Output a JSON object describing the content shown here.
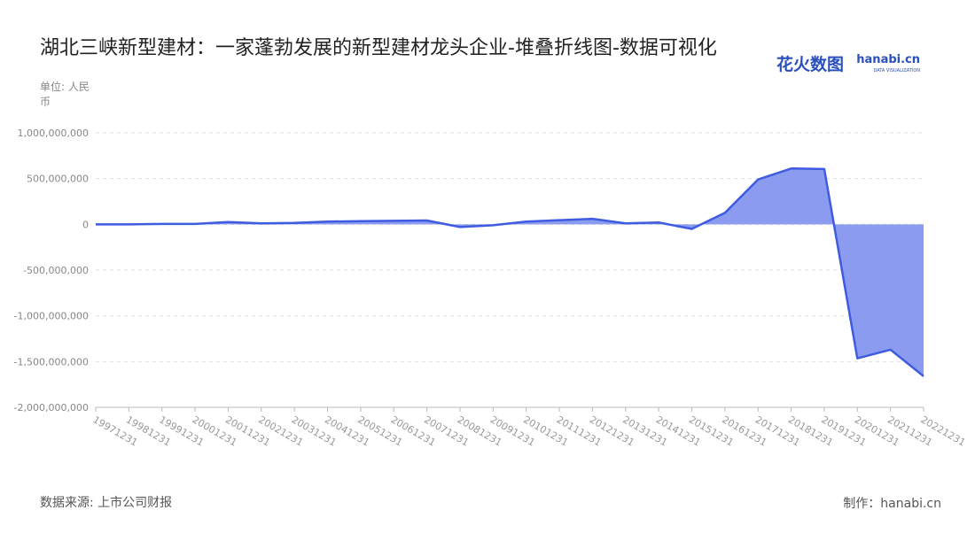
{
  "chart_data": {
    "type": "area",
    "title": "湖北三峡新型建材：一家蓬勃发展的新型建材龙头企业-堆叠折线图-数据可视化",
    "unit": "单位: 人民币",
    "source": "数据来源: 上市公司财报",
    "credit": "制作：hanabi.cn",
    "brand": "花火数图",
    "brand_site": "hanabi.cn",
    "brand_tagline": "DATA VISUALIZATION",
    "categories": [
      "19971231",
      "19981231",
      "19991231",
      "20001231",
      "20011231",
      "20021231",
      "20031231",
      "20041231",
      "20051231",
      "20061231",
      "20071231",
      "20081231",
      "20091231",
      "20101231",
      "20111231",
      "20121231",
      "20131231",
      "20141231",
      "20151231",
      "20161231",
      "20171231",
      "20181231",
      "20191231",
      "20201231",
      "20211231",
      "20221231"
    ],
    "values": [
      0,
      0,
      5000000,
      5000000,
      25000000,
      10000000,
      15000000,
      30000000,
      35000000,
      38000000,
      42000000,
      -30000000,
      -10000000,
      30000000,
      45000000,
      60000000,
      10000000,
      20000000,
      -50000000,
      125000000,
      490000000,
      610000000,
      605000000,
      -1465000000,
      -1370000000,
      -1660000000
    ],
    "color": "#3f5be0",
    "fill": "#8b9cf0",
    "ylim": [
      -2000000000,
      1000000000
    ],
    "yticks": [
      {
        "value": 1000000000,
        "label": "1,000,000,000"
      },
      {
        "value": 500000000,
        "label": "500,000,000"
      },
      0,
      {
        "value": -500000000,
        "label": "-500,000,000"
      },
      {
        "value": -1000000000,
        "label": "-1,000,000,000"
      },
      {
        "value": -1500000000,
        "label": "-1,500,000,000"
      },
      {
        "value": -2000000000,
        "label": "-2,000,000,000"
      }
    ],
    "grid": true
  }
}
